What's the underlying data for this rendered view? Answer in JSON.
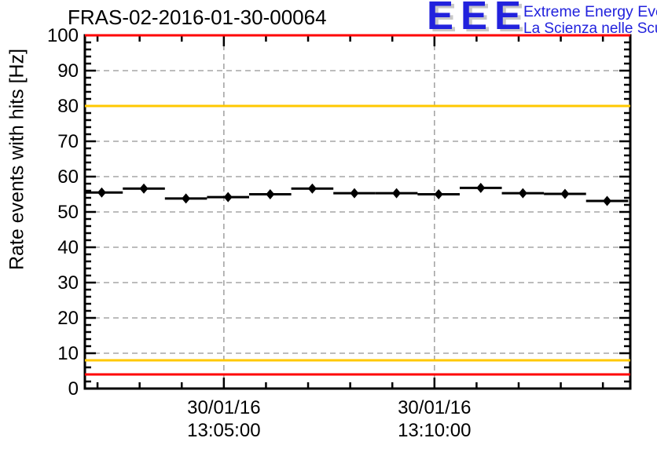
{
  "header": {
    "logo": {
      "acronym": "EEE",
      "tagline1": "Extreme Energy Events",
      "tagline2": "La Scienza nelle Scuole",
      "text_color": "#2222dd",
      "shadow_color": "#c8c8c8"
    }
  },
  "chart_data": {
    "type": "scatter",
    "title": "FRAS-02-2016-01-30-00064",
    "ylabel": "Rate events with hits [Hz]",
    "xlabel": "",
    "ylim": [
      0,
      100
    ],
    "y_major_tick_step": 10,
    "y_minor_tick_step": 2,
    "grid": true,
    "grid_color": "#a6a6a6",
    "x_unit": "minutes after 13:00:00 on 30/01/16",
    "xlim": [
      1.7,
      14.65
    ],
    "x_major_ticks": [
      {
        "t": 5,
        "label_date": "30/01/16",
        "label_time": "13:05:00"
      },
      {
        "t": 10,
        "label_date": "30/01/16",
        "label_time": "13:10:00"
      }
    ],
    "x_minor_ticks": [
      2,
      3,
      4,
      6,
      7,
      8,
      9,
      11,
      12,
      13,
      14
    ],
    "series": [
      {
        "name": "rate-events-with-hits",
        "marker": "filled-diamond",
        "color": "#000000",
        "x": [
          2.1,
          3.1,
          4.1,
          5.1,
          6.1,
          7.1,
          8.1,
          9.1,
          10.1,
          11.1,
          12.1,
          13.1,
          14.1
        ],
        "y": [
          55.5,
          56.6,
          53.8,
          54.2,
          55.0,
          56.6,
          55.3,
          55.3,
          55.0,
          56.8,
          55.3,
          55.1,
          53.1
        ],
        "xerr": 0.5
      }
    ],
    "threshold_lines": [
      {
        "y": 100,
        "color": "#ff0000"
      },
      {
        "y": 80,
        "color": "#ffc800"
      },
      {
        "y": 8,
        "color": "#ffc800"
      },
      {
        "y": 4,
        "color": "#ff0000"
      }
    ]
  }
}
